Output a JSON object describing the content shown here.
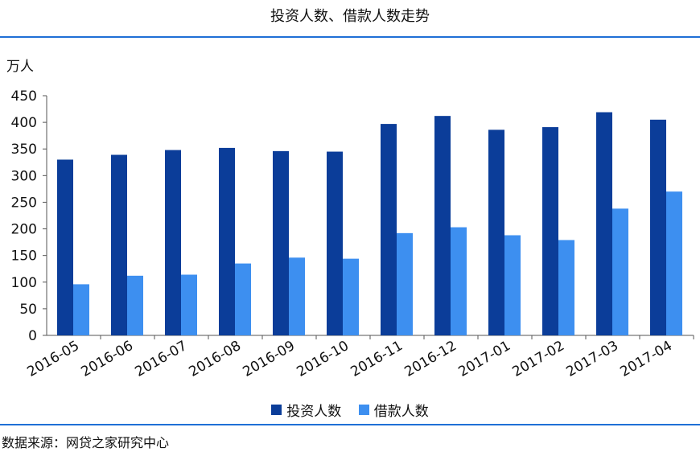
{
  "header": {
    "title": "投资人数、借款人数走势"
  },
  "footer": {
    "source": "数据来源：网贷之家研究中心"
  },
  "colors": {
    "accent_rule": "#1f6fd6"
  },
  "chart_data": {
    "type": "bar",
    "title": "投资人数、借款人数走势",
    "unit_label": "万人",
    "xlabel": "",
    "ylabel": "万人",
    "ylim": [
      0,
      450
    ],
    "yticks": [
      0,
      50,
      100,
      150,
      200,
      250,
      300,
      350,
      400,
      450
    ],
    "grid": false,
    "legend_position": "bottom",
    "categories": [
      "2016-05",
      "2016-06",
      "2016-07",
      "2016-08",
      "2016-09",
      "2016-10",
      "2016-11",
      "2016-12",
      "2017-01",
      "2017-02",
      "2017-03",
      "2017-04"
    ],
    "series": [
      {
        "name": "投资人数",
        "color": "#0b3d99",
        "values": [
          330,
          339,
          348,
          352,
          346,
          345,
          397,
          412,
          386,
          391,
          419,
          405
        ]
      },
      {
        "name": "借款人数",
        "color": "#3d8ff0",
        "values": [
          96,
          112,
          114,
          135,
          146,
          144,
          192,
          203,
          188,
          179,
          238,
          270
        ]
      }
    ]
  }
}
